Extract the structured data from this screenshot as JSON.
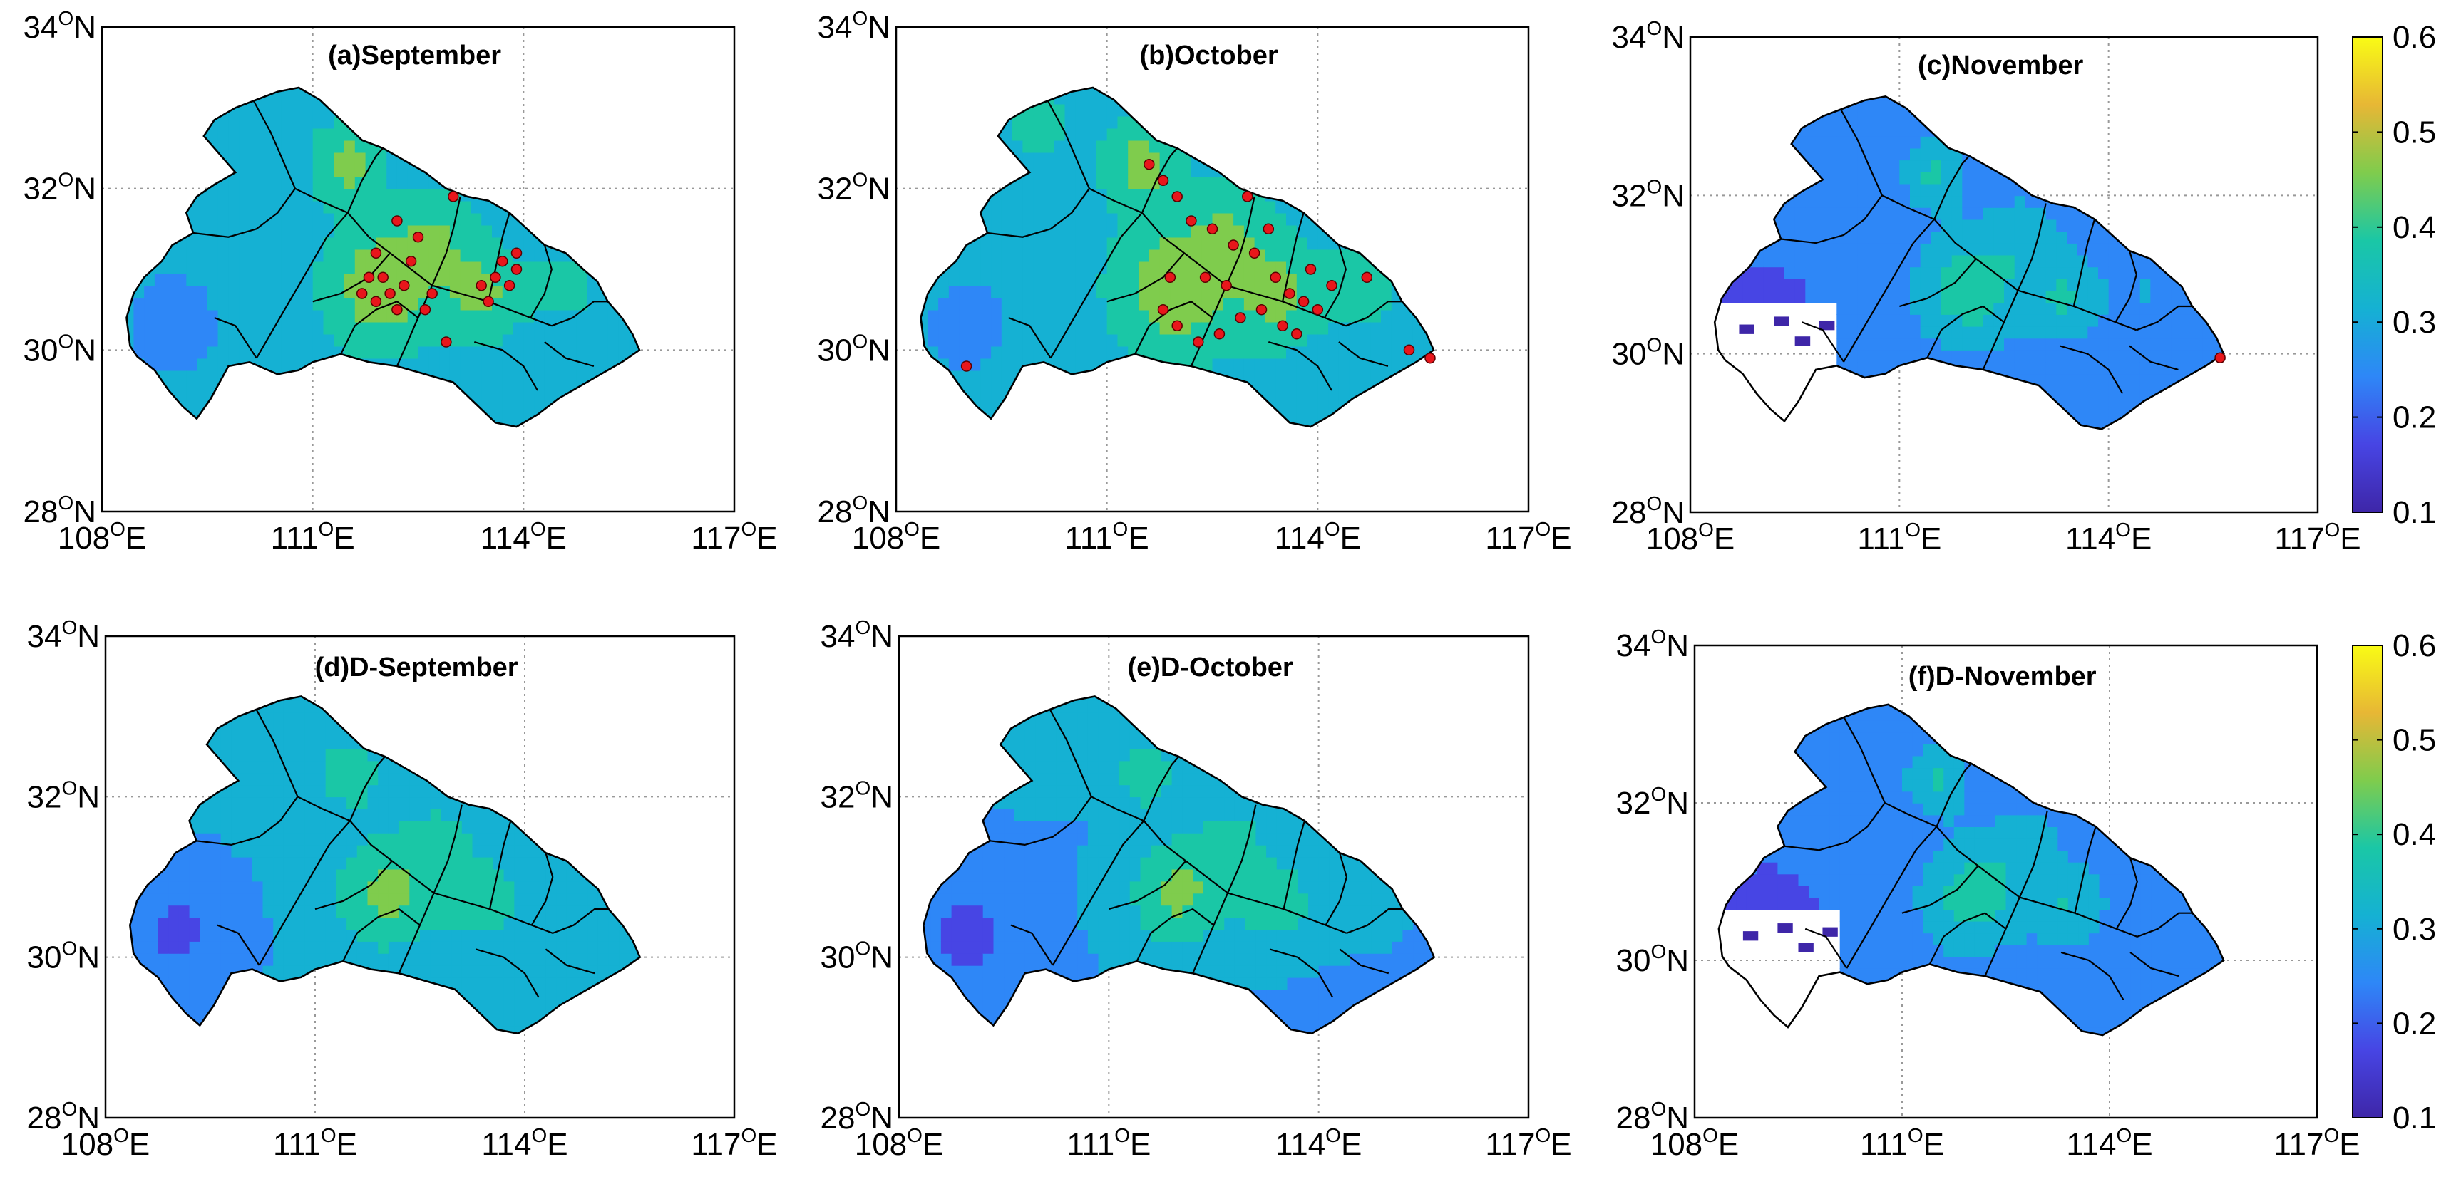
{
  "figure": {
    "panels": [
      {
        "id": "a",
        "title": "(a)September",
        "has_points": true,
        "point_set": "sep",
        "palette_shift": 0.06,
        "has_colorbar": false,
        "blank_west": false
      },
      {
        "id": "b",
        "title": "(b)October",
        "has_points": true,
        "point_set": "oct",
        "palette_shift": 0.08,
        "has_colorbar": false,
        "blank_west": false
      },
      {
        "id": "c",
        "title": "(c)November",
        "has_points": true,
        "point_set": "nov",
        "palette_shift": -0.12,
        "has_colorbar": true,
        "blank_west": true
      },
      {
        "id": "d",
        "title": "(d)D-September",
        "has_points": false,
        "point_set": "",
        "palette_shift": -0.02,
        "has_colorbar": false,
        "blank_west": false
      },
      {
        "id": "e",
        "title": "(e)D-October",
        "has_points": false,
        "point_set": "",
        "palette_shift": -0.03,
        "has_colorbar": false,
        "blank_west": false
      },
      {
        "id": "f",
        "title": "(f)D-November",
        "has_points": false,
        "point_set": "",
        "palette_shift": -0.13,
        "has_colorbar": true,
        "blank_west": true
      }
    ],
    "axes": {
      "lon_ticks": [
        "108",
        "111",
        "114",
        "117"
      ],
      "lon_suffix": "E",
      "lat_ticks": [
        "28",
        "30",
        "32",
        "34"
      ],
      "lat_suffix": "N",
      "degree_symbol": "O",
      "lon_range": [
        108,
        117
      ],
      "lat_range": [
        28,
        34
      ],
      "grid": "dotted"
    },
    "colorbar": {
      "ticks": [
        "0.1",
        "0.2",
        "0.3",
        "0.4",
        "0.5",
        "0.6"
      ],
      "range": [
        0.1,
        0.6
      ],
      "colormap": "parula",
      "colors": [
        "#3e26a8",
        "#4745e4",
        "#2e87f7",
        "#15b1d3",
        "#1ac7a6",
        "#7fcc4d",
        "#e7b735",
        "#f9fb15"
      ]
    }
  }
}
